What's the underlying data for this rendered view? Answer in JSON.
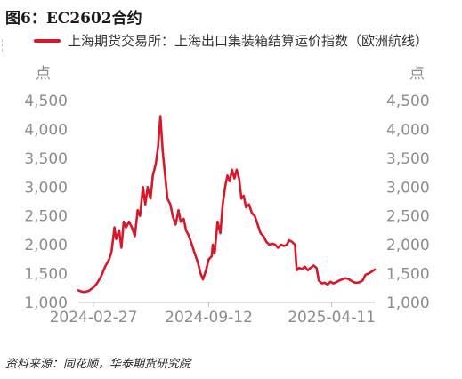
{
  "figure": {
    "title": "图6：EC2602合约",
    "source": "资料来源：同花顺，华泰期货研究院"
  },
  "colors": {
    "series": "#d7182a",
    "axis_text": "#8c8c8c",
    "baseline": "#bfbfbf"
  },
  "chart_data": {
    "type": "line",
    "legend_position": "top-left",
    "grid": false,
    "y_unit_left": "点",
    "y_unit_right": "点",
    "ylim": [
      1000,
      4500
    ],
    "y_ticks": [
      {
        "value": 1000,
        "label": "1,000"
      },
      {
        "value": 1500,
        "label": "1,500"
      },
      {
        "value": 2000,
        "label": "2,000"
      },
      {
        "value": 2500,
        "label": "2,500"
      },
      {
        "value": 3000,
        "label": "3,000"
      },
      {
        "value": 3500,
        "label": "3,500"
      },
      {
        "value": 4000,
        "label": "4,000"
      },
      {
        "value": 4500,
        "label": "4,500"
      }
    ],
    "xlim": [
      "2024-02-01",
      "2025-06-24"
    ],
    "x_ticks": [
      {
        "value": "2024-02-27",
        "label": "2024-02-27"
      },
      {
        "value": "2024-09-12",
        "label": "2024-09-12"
      },
      {
        "value": "2025-04-11",
        "label": "2025-04-11"
      }
    ],
    "series": [
      {
        "name": "上海期货交易所：上海出口集装箱结算运价指数（欧洲航线）",
        "points": [
          [
            "2024-02-01",
            1210
          ],
          [
            "2024-02-06",
            1190
          ],
          [
            "2024-02-12",
            1180
          ],
          [
            "2024-02-19",
            1200
          ],
          [
            "2024-02-27",
            1260
          ],
          [
            "2024-03-04",
            1330
          ],
          [
            "2024-03-11",
            1450
          ],
          [
            "2024-03-18",
            1620
          ],
          [
            "2024-03-25",
            1750
          ],
          [
            "2024-03-29",
            1880
          ],
          [
            "2024-04-03",
            2300
          ],
          [
            "2024-04-06",
            2100
          ],
          [
            "2024-04-11",
            2250
          ],
          [
            "2024-04-15",
            1950
          ],
          [
            "2024-04-19",
            2400
          ],
          [
            "2024-04-23",
            2300
          ],
          [
            "2024-04-28",
            2400
          ],
          [
            "2024-05-03",
            2300
          ],
          [
            "2024-05-08",
            2150
          ],
          [
            "2024-05-13",
            2600
          ],
          [
            "2024-05-17",
            2500
          ],
          [
            "2024-05-22",
            3000
          ],
          [
            "2024-05-26",
            2700
          ],
          [
            "2024-05-30",
            3000
          ],
          [
            "2024-06-04",
            2800
          ],
          [
            "2024-06-08",
            3200
          ],
          [
            "2024-06-13",
            3400
          ],
          [
            "2024-06-17",
            3700
          ],
          [
            "2024-06-21",
            4230
          ],
          [
            "2024-06-25",
            3600
          ],
          [
            "2024-06-29",
            3200
          ],
          [
            "2024-07-03",
            2800
          ],
          [
            "2024-07-08",
            2700
          ],
          [
            "2024-07-12",
            2500
          ],
          [
            "2024-07-17",
            2350
          ],
          [
            "2024-07-22",
            2600
          ],
          [
            "2024-07-26",
            2400
          ],
          [
            "2024-07-31",
            2450
          ],
          [
            "2024-08-04",
            2250
          ],
          [
            "2024-08-09",
            2150
          ],
          [
            "2024-08-14",
            2000
          ],
          [
            "2024-08-19",
            1850
          ],
          [
            "2024-08-24",
            1700
          ],
          [
            "2024-08-29",
            1500
          ],
          [
            "2024-09-02",
            1400
          ],
          [
            "2024-09-07",
            1550
          ],
          [
            "2024-09-12",
            1750
          ],
          [
            "2024-09-17",
            1800
          ],
          [
            "2024-09-19",
            2000
          ],
          [
            "2024-09-22",
            1850
          ],
          [
            "2024-09-27",
            2400
          ],
          [
            "2024-10-02",
            2200
          ],
          [
            "2024-10-06",
            2700
          ],
          [
            "2024-10-10",
            3000
          ],
          [
            "2024-10-14",
            3200
          ],
          [
            "2024-10-18",
            3100
          ],
          [
            "2024-10-22",
            3300
          ],
          [
            "2024-10-26",
            3150
          ],
          [
            "2024-10-30",
            3300
          ],
          [
            "2024-11-03",
            3150
          ],
          [
            "2024-11-07",
            2800
          ],
          [
            "2024-11-11",
            2850
          ],
          [
            "2024-11-15",
            2650
          ],
          [
            "2024-11-20",
            2700
          ],
          [
            "2024-11-25",
            2550
          ],
          [
            "2024-11-30",
            2500
          ],
          [
            "2024-12-05",
            2350
          ],
          [
            "2024-12-10",
            2200
          ],
          [
            "2024-12-15",
            2150
          ],
          [
            "2024-12-20",
            2050
          ],
          [
            "2024-12-25",
            2000
          ],
          [
            "2024-12-30",
            2020
          ],
          [
            "2025-01-04",
            2000
          ],
          [
            "2025-01-09",
            1950
          ],
          [
            "2025-01-14",
            2000
          ],
          [
            "2025-01-19",
            1980
          ],
          [
            "2025-01-24",
            2000
          ],
          [
            "2025-01-28",
            2080
          ],
          [
            "2025-02-02",
            2050
          ],
          [
            "2025-02-07",
            2000
          ],
          [
            "2025-02-10",
            1560
          ],
          [
            "2025-02-14",
            1600
          ],
          [
            "2025-02-19",
            1580
          ],
          [
            "2025-02-24",
            1620
          ],
          [
            "2025-03-01",
            1560
          ],
          [
            "2025-03-06",
            1600
          ],
          [
            "2025-03-11",
            1640
          ],
          [
            "2025-03-16",
            1600
          ],
          [
            "2025-03-20",
            1380
          ],
          [
            "2025-03-25",
            1330
          ],
          [
            "2025-03-30",
            1340
          ],
          [
            "2025-04-04",
            1310
          ],
          [
            "2025-04-09",
            1360
          ],
          [
            "2025-04-14",
            1330
          ],
          [
            "2025-04-19",
            1350
          ],
          [
            "2025-04-24",
            1380
          ],
          [
            "2025-04-29",
            1400
          ],
          [
            "2025-05-04",
            1420
          ],
          [
            "2025-05-09",
            1410
          ],
          [
            "2025-05-14",
            1380
          ],
          [
            "2025-05-19",
            1350
          ],
          [
            "2025-05-24",
            1340
          ],
          [
            "2025-05-29",
            1350
          ],
          [
            "2025-06-03",
            1380
          ],
          [
            "2025-06-08",
            1480
          ],
          [
            "2025-06-13",
            1500
          ],
          [
            "2025-06-18",
            1530
          ],
          [
            "2025-06-24",
            1570
          ]
        ]
      }
    ]
  }
}
